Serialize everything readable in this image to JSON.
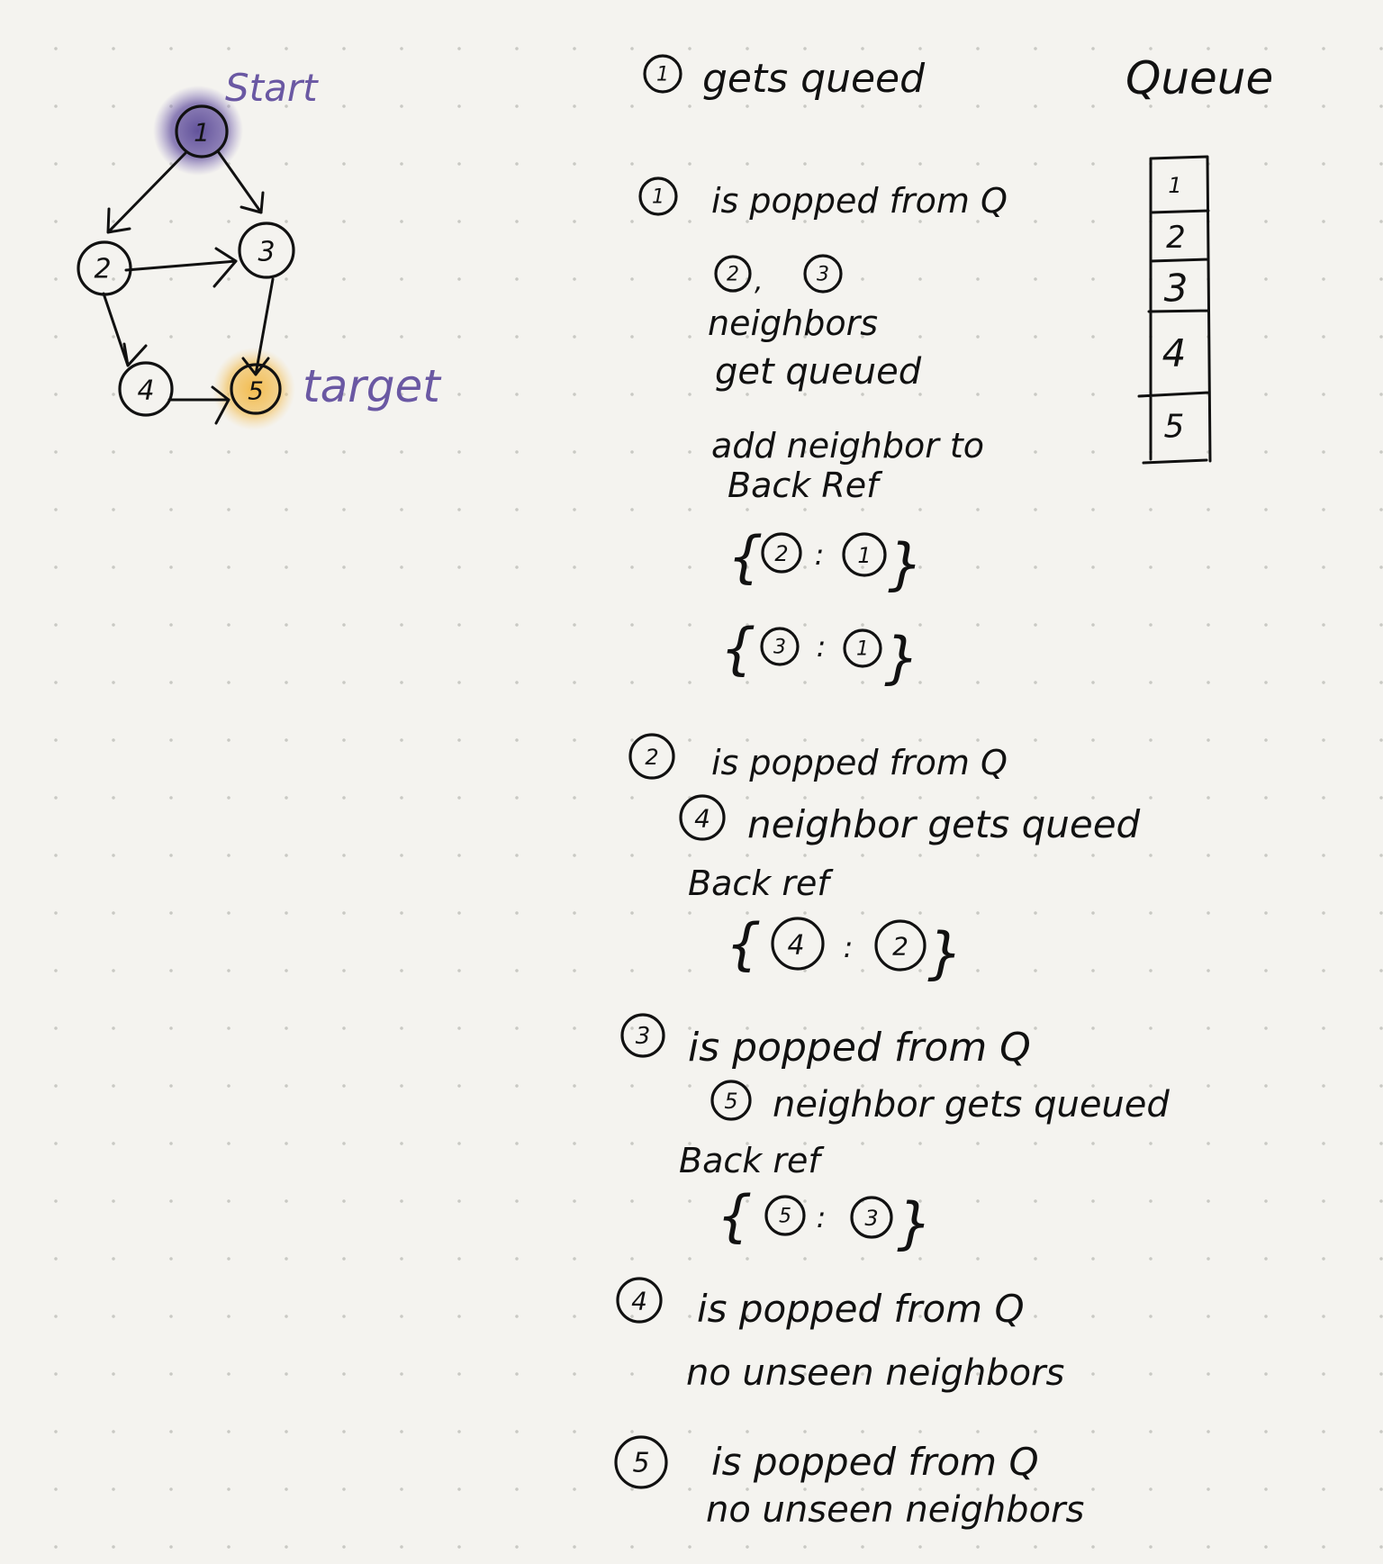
{
  "graph": {
    "start_label": "Start",
    "target_label": "target",
    "nodes": [
      "1",
      "2",
      "3",
      "4",
      "5"
    ],
    "colors": {
      "start": "#6a58a3",
      "target": "#f0b94a"
    }
  },
  "queue": {
    "title": "Queue",
    "items": [
      "1",
      "2",
      "3",
      "4",
      "5"
    ]
  },
  "steps": {
    "s0": {
      "node": "1",
      "text": "gets queed"
    },
    "s1": {
      "node": "1",
      "text": "is popped from Q",
      "neighbors": [
        "2",
        "3"
      ],
      "sep": ",",
      "l1": "neighbors",
      "l2": "get queued",
      "l3": "add neighbor to",
      "l4": "Back Ref",
      "refs": [
        {
          "key": "2",
          "val": "1"
        },
        {
          "key": "3",
          "val": "1"
        }
      ]
    },
    "s2": {
      "node": "2",
      "text": "is popped from Q",
      "neighbor": "4",
      "neighbor_text": "neighbor gets queed",
      "backref_label": "Back ref",
      "ref": {
        "key": "4",
        "val": "2"
      }
    },
    "s3": {
      "node": "3",
      "text": "is popped from Q",
      "neighbor": "5",
      "neighbor_text": "neighbor gets queued",
      "backref_label": "Back ref",
      "ref": {
        "key": "5",
        "val": "3"
      }
    },
    "s4": {
      "node": "4",
      "text": "is popped from Q",
      "sub": "no unseen neighbors"
    },
    "s5": {
      "node": "5",
      "text": "is popped from Q",
      "sub": "no unseen neighbors"
    },
    "colon": ":",
    "brace_open": "{",
    "brace_close": "}"
  }
}
